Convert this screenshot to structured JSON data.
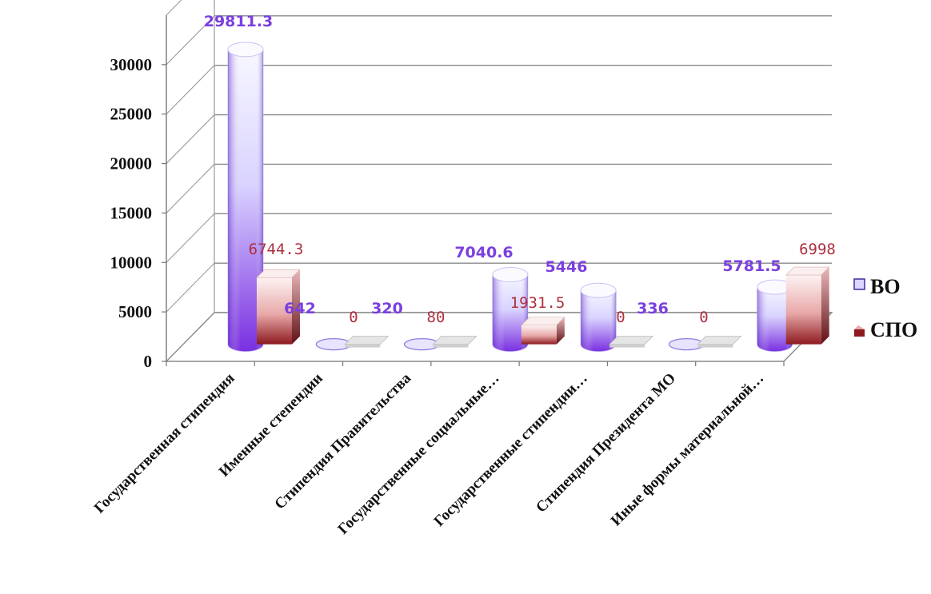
{
  "chart_data": {
    "type": "bar",
    "categories": [
      "Государственная  стипендия",
      "Именные степендии",
      "Стипендия Правительства",
      "Государственные социальные…",
      "Государственные стипендии…",
      "Стипендия Президента МО",
      "Иные формы материальной…"
    ],
    "series": [
      {
        "name": "ВО",
        "values": [
          29811.3,
          642,
          320,
          7040.6,
          5446,
          336,
          5781.5
        ]
      },
      {
        "name": "СПО",
        "values": [
          6744.3,
          0,
          80,
          1931.5,
          0,
          0,
          6998
        ]
      }
    ],
    "data_labels": {
      "ВО": [
        "29811.3",
        "642",
        "320",
        "7040.6",
        "5446",
        "336",
        "5781.5"
      ],
      "СПО": [
        "6744.3",
        "0",
        "80",
        "1931.5",
        "0",
        "0",
        "6998"
      ]
    },
    "y_ticks": [
      "0",
      "5000",
      "10000",
      "15000",
      "20000",
      "25000",
      "30000"
    ],
    "ylim": [
      0,
      35000
    ],
    "grid": true,
    "legend": "right",
    "title": "",
    "xlabel": "",
    "ylabel": "",
    "colors": {
      "ВО_light": "#f4f4ff",
      "ВО_dark": "#7a2fe0",
      "СПО_light": "#fbe4e6",
      "СПО_dark": "#8c1a1f",
      "label_ВО": "#7a3fe0",
      "label_СПО": "#b03040"
    }
  }
}
